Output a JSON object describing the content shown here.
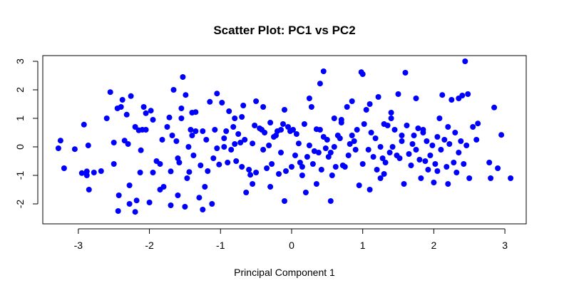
{
  "chart_data": {
    "type": "scatter",
    "title": "Scatter Plot: PC1 vs PC2",
    "xlabel": "Principal Component 1",
    "ylabel": "",
    "xlim": [
      -3.5,
      3.3
    ],
    "ylim": [
      -2.7,
      3.2
    ],
    "x_ticks": [
      "-3",
      "-2",
      "-1",
      "0",
      "1",
      "2",
      "3"
    ],
    "y_ticks": [
      "-2",
      "-1",
      "0",
      "1",
      "2",
      "3"
    ],
    "grid": false,
    "legend": "none",
    "marker_color": "#0000ff",
    "series": [
      {
        "points": [
          [
            -3.28,
            -0.05
          ],
          [
            -3.25,
            0.22
          ],
          [
            -3.2,
            -0.75
          ],
          [
            -3.05,
            -0.08
          ],
          [
            -2.92,
            0.78
          ],
          [
            -2.95,
            -0.92
          ],
          [
            -2.88,
            -1.0
          ],
          [
            -2.88,
            -0.86
          ],
          [
            -2.86,
            0.05
          ],
          [
            -2.85,
            -1.5
          ],
          [
            -2.78,
            -0.9
          ],
          [
            -2.68,
            -0.85
          ],
          [
            -2.6,
            1.0
          ],
          [
            -2.55,
            1.92
          ],
          [
            -2.5,
            0.15
          ],
          [
            -2.43,
            -1.7
          ],
          [
            -2.44,
            -2.25
          ],
          [
            -2.4,
            1.4
          ],
          [
            -2.38,
            1.65
          ],
          [
            -2.35,
            0.22
          ],
          [
            -2.32,
            1.13
          ],
          [
            -2.28,
            -1.35
          ],
          [
            -2.28,
            -2.0
          ],
          [
            -2.26,
            1.78
          ],
          [
            -2.2,
            0.7
          ],
          [
            -2.2,
            -2.28
          ],
          [
            -2.18,
            -1.88
          ],
          [
            -2.15,
            0.58
          ],
          [
            -2.13,
            -0.9
          ],
          [
            -2.12,
            -0.12
          ],
          [
            -2.1,
            0.6
          ],
          [
            -2.08,
            1.4
          ],
          [
            -2.05,
            0.6
          ],
          [
            -2.05,
            1.18
          ],
          [
            -2.0,
            -1.95
          ],
          [
            -1.98,
            1.27
          ],
          [
            -1.95,
            0.95
          ],
          [
            -1.9,
            -0.5
          ],
          [
            -1.85,
            -0.6
          ],
          [
            -1.82,
            0.25
          ],
          [
            -1.8,
            -1.4
          ],
          [
            -1.75,
            0.7
          ],
          [
            -1.72,
            1.03
          ],
          [
            -1.7,
            -0.86
          ],
          [
            -1.68,
            0.4
          ],
          [
            -1.66,
            2.0
          ],
          [
            -1.62,
            0.2
          ],
          [
            -1.6,
            -1.7
          ],
          [
            -1.58,
            -0.55
          ],
          [
            -1.55,
            1.35
          ],
          [
            -1.53,
            2.45
          ],
          [
            -1.5,
            -2.1
          ],
          [
            -1.49,
            1.82
          ],
          [
            -1.47,
            -1.1
          ],
          [
            -1.45,
            0.0
          ],
          [
            -1.44,
            -0.88
          ],
          [
            -1.42,
            0.6
          ],
          [
            -1.4,
            1.2
          ],
          [
            -1.38,
            -0.3
          ],
          [
            -1.35,
            1.22
          ],
          [
            -1.3,
            -1.78
          ],
          [
            -1.28,
            -0.65
          ],
          [
            -1.25,
            0.55
          ],
          [
            -1.22,
            -1.4
          ],
          [
            -1.2,
            0.25
          ],
          [
            -1.18,
            -0.85
          ],
          [
            -1.15,
            1.58
          ],
          [
            -1.12,
            -2.0
          ],
          [
            -1.1,
            -0.4
          ],
          [
            -1.08,
            0.6
          ],
          [
            -1.05,
            1.87
          ],
          [
            -1.02,
            -0.62
          ],
          [
            -0.98,
            1.55
          ],
          [
            -0.95,
            0.3
          ],
          [
            -0.92,
            0.55
          ],
          [
            -0.9,
            -0.55
          ],
          [
            -0.88,
            1.25
          ],
          [
            -0.85,
            -0.1
          ],
          [
            -0.82,
            0.7
          ],
          [
            -0.8,
            1.0
          ],
          [
            -0.78,
            -0.5
          ],
          [
            -0.75,
            0.45
          ],
          [
            -0.72,
            0.15
          ],
          [
            -0.7,
            1.05
          ],
          [
            -0.68,
            1.45
          ],
          [
            -0.66,
            0.25
          ],
          [
            -0.64,
            -1.6
          ],
          [
            -0.6,
            -0.8
          ],
          [
            -0.58,
            -0.98
          ],
          [
            -0.55,
            0.12
          ],
          [
            -0.52,
            0.75
          ],
          [
            -0.5,
            -0.9
          ],
          [
            -0.45,
            0.65
          ],
          [
            -0.42,
            0.6
          ],
          [
            -0.4,
            -0.1
          ],
          [
            -0.38,
            0.5
          ],
          [
            -0.35,
            -0.75
          ],
          [
            -0.32,
            0.05
          ],
          [
            -0.3,
            0.85
          ],
          [
            -0.28,
            -0.6
          ],
          [
            -0.25,
            0.35
          ],
          [
            -0.22,
            0.4
          ],
          [
            -0.2,
            0.55
          ],
          [
            -0.18,
            -0.95
          ],
          [
            -0.15,
            -0.2
          ],
          [
            -0.12,
            0.8
          ],
          [
            -0.1,
            1.3
          ],
          [
            -0.08,
            -0.85
          ],
          [
            -0.05,
            0.7
          ],
          [
            -0.02,
            0.55
          ],
          [
            0.0,
            -0.7
          ],
          [
            0.02,
            0.6
          ],
          [
            0.05,
            -0.3
          ],
          [
            0.07,
            0.45
          ],
          [
            0.1,
            0.12
          ],
          [
            0.12,
            -0.55
          ],
          [
            0.15,
            -0.7
          ],
          [
            0.18,
            0.8
          ],
          [
            0.2,
            -1.6
          ],
          [
            0.22,
            -0.35
          ],
          [
            0.25,
            0.05
          ],
          [
            0.28,
            1.4
          ],
          [
            0.3,
            -0.6
          ],
          [
            0.32,
            -0.15
          ],
          [
            0.35,
            0.62
          ],
          [
            0.38,
            -0.2
          ],
          [
            0.4,
            2.22
          ],
          [
            0.42,
            -0.8
          ],
          [
            0.45,
            0.35
          ],
          [
            0.48,
            -0.05
          ],
          [
            0.5,
            0.25
          ],
          [
            0.52,
            -0.35
          ],
          [
            0.55,
            -0.2
          ],
          [
            0.57,
            -1.0
          ],
          [
            0.6,
            0.0
          ],
          [
            0.62,
            -0.7
          ],
          [
            0.65,
            0.4
          ],
          [
            0.68,
            0.3
          ],
          [
            0.7,
            0.85
          ],
          [
            0.72,
            -0.65
          ],
          [
            0.75,
            -0.7
          ],
          [
            0.78,
            1.4
          ],
          [
            0.8,
            -0.3
          ],
          [
            0.82,
            0.1
          ],
          [
            0.85,
            1.6
          ],
          [
            0.88,
            0.2
          ],
          [
            0.9,
            -0.1
          ],
          [
            0.92,
            0.6
          ],
          [
            0.95,
            -1.35
          ],
          [
            0.98,
            2.62
          ],
          [
            1.0,
            -0.6
          ],
          [
            1.02,
            0.8
          ],
          [
            1.05,
            1.3
          ],
          [
            1.08,
            -0.1
          ],
          [
            1.1,
            -1.5
          ],
          [
            1.12,
            0.5
          ],
          [
            1.15,
            -0.35
          ],
          [
            1.18,
            0.3
          ],
          [
            1.2,
            -0.8
          ],
          [
            1.22,
            1.75
          ],
          [
            1.25,
            0.0
          ],
          [
            1.28,
            -0.4
          ],
          [
            1.3,
            -0.95
          ],
          [
            1.32,
            -0.55
          ],
          [
            1.35,
            0.75
          ],
          [
            1.38,
            -0.2
          ],
          [
            1.4,
            1.2
          ],
          [
            1.42,
            0.0
          ],
          [
            1.45,
            0.6
          ],
          [
            1.48,
            -0.3
          ],
          [
            1.5,
            1.85
          ],
          [
            1.52,
            -0.4
          ],
          [
            1.55,
            0.2
          ],
          [
            1.58,
            -1.3
          ],
          [
            1.6,
            2.6
          ],
          [
            1.62,
            0.75
          ],
          [
            1.65,
            -0.25
          ],
          [
            1.68,
            -0.65
          ],
          [
            1.7,
            0.1
          ],
          [
            1.72,
            0.4
          ],
          [
            1.75,
            -0.1
          ],
          [
            1.78,
            0.65
          ],
          [
            1.8,
            -0.45
          ],
          [
            1.82,
            -1.1
          ],
          [
            1.85,
            0.5
          ],
          [
            1.88,
            -0.5
          ],
          [
            1.9,
            0.2
          ],
          [
            1.92,
            -0.8
          ],
          [
            1.95,
            -0.3
          ],
          [
            1.98,
            0.05
          ],
          [
            2.0,
            -1.25
          ],
          [
            2.02,
            -0.6
          ],
          [
            2.05,
            0.35
          ],
          [
            2.08,
            1.0
          ],
          [
            2.1,
            -0.1
          ],
          [
            2.12,
            1.82
          ],
          [
            2.15,
            0.25
          ],
          [
            2.18,
            -0.7
          ],
          [
            2.2,
            -1.3
          ],
          [
            2.22,
            0.1
          ],
          [
            2.25,
            1.65
          ],
          [
            2.28,
            -0.55
          ],
          [
            2.3,
            0.5
          ],
          [
            2.32,
            -0.9
          ],
          [
            2.35,
            1.7
          ],
          [
            2.38,
            0.2
          ],
          [
            2.4,
            1.8
          ],
          [
            2.42,
            -0.6
          ],
          [
            2.44,
            3.0
          ],
          [
            2.46,
            0.05
          ],
          [
            2.48,
            1.85
          ],
          [
            2.5,
            -1.1
          ],
          [
            2.55,
            0.7
          ],
          [
            2.62,
            0.82
          ],
          [
            2.78,
            -0.55
          ],
          [
            2.8,
            -1.1
          ],
          [
            2.85,
            1.38
          ],
          [
            2.9,
            -0.75
          ],
          [
            2.95,
            0.42
          ],
          [
            3.08,
            -1.1
          ],
          [
            -2.5,
            -0.6
          ],
          [
            -2.45,
            1.35
          ],
          [
            -1.95,
            -0.9
          ],
          [
            -1.55,
            1.0
          ],
          [
            -1.35,
            0.55
          ],
          [
            -1.05,
            -0.05
          ],
          [
            -0.5,
            1.6
          ],
          [
            0.45,
            2.65
          ],
          [
            1.0,
            2.55
          ],
          [
            -0.8,
            0.1
          ],
          [
            -0.15,
            0.6
          ],
          [
            0.25,
            1.7
          ],
          [
            0.7,
            0.95
          ],
          [
            1.3,
            0.8
          ],
          [
            1.55,
            0.4
          ],
          [
            1.85,
            0.6
          ],
          [
            0.15,
            -1.0
          ],
          [
            -0.3,
            -1.4
          ],
          [
            -0.55,
            -1.3
          ],
          [
            -1.25,
            -2.2
          ],
          [
            -1.7,
            -2.05
          ],
          [
            0.55,
            -1.9
          ],
          [
            2.35,
            -0.2
          ],
          [
            2.05,
            -0.85
          ],
          [
            1.4,
            1.0
          ],
          [
            0.85,
            0.4
          ],
          [
            -0.4,
            1.4
          ],
          [
            -0.95,
            0.0
          ],
          [
            -1.6,
            -0.4
          ],
          [
            -2.3,
            0.1
          ],
          [
            1.1,
            1.5
          ],
          [
            0.35,
            -1.3
          ],
          [
            -0.1,
            -1.9
          ],
          [
            0.6,
            1.0
          ],
          [
            1.75,
            1.7
          ],
          [
            2.2,
            0.7
          ],
          [
            -1.85,
            -1.5
          ],
          [
            -0.7,
            -0.7
          ],
          [
            0.4,
            0.6
          ],
          [
            1.25,
            -1.1
          ],
          [
            2.6,
            0.25
          ],
          [
            -1.4,
            0.4
          ]
        ]
      }
    ]
  }
}
